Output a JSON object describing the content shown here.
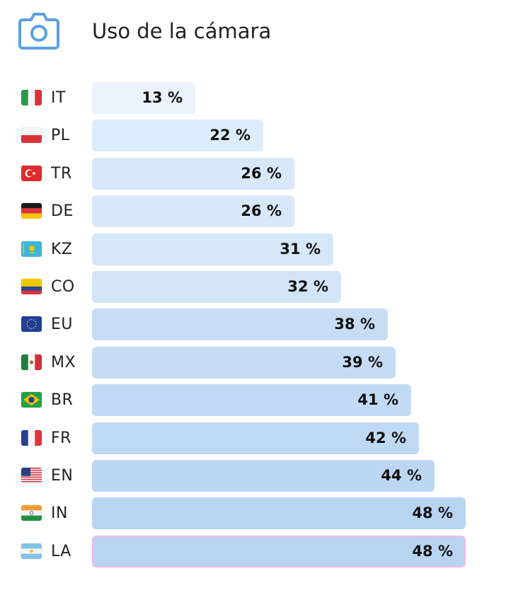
{
  "header": {
    "title": "Uso de la cámara",
    "icon": "camera-icon",
    "icon_color": "#5b9fe3"
  },
  "chart_data": {
    "type": "bar",
    "orientation": "horizontal",
    "title": "Uso de la cámara",
    "xlabel": "",
    "ylabel": "",
    "unit": "%",
    "categories": [
      "IT",
      "PL",
      "TR",
      "DE",
      "KZ",
      "CO",
      "EU",
      "MX",
      "BR",
      "FR",
      "EN",
      "IN",
      "LA"
    ],
    "values": [
      13,
      22,
      26,
      26,
      31,
      32,
      38,
      39,
      41,
      42,
      44,
      48,
      48
    ],
    "labels": [
      "13 %",
      "22 %",
      "26 %",
      "26 %",
      "31 %",
      "32 %",
      "38 %",
      "39 %",
      "41 %",
      "42 %",
      "44 %",
      "48 %",
      "48 %"
    ],
    "flags": [
      "italy-flag-icon",
      "poland-flag-icon",
      "turkey-flag-icon",
      "germany-flag-icon",
      "kazakhstan-flag-icon",
      "colombia-flag-icon",
      "european-union-flag-icon",
      "mexico-flag-icon",
      "brazil-flag-icon",
      "france-flag-icon",
      "usa-flag-icon",
      "india-flag-icon",
      "argentina-flag-icon"
    ],
    "bar_colors": [
      "#eaf3fc",
      "#ddecfa",
      "#d8e8f9",
      "#d8e8f9",
      "#d6e7f8",
      "#d2e4f7",
      "#c7ddf4",
      "#c5dcf4",
      "#c2daf3",
      "#c0d9f3",
      "#bdd7f2",
      "#b8d4f1",
      "#b8d4f1"
    ],
    "highlight_category": "LA",
    "highlight_color": "#f5b4f0",
    "xlim": [
      0,
      50
    ],
    "grid": false,
    "legend": "none"
  }
}
